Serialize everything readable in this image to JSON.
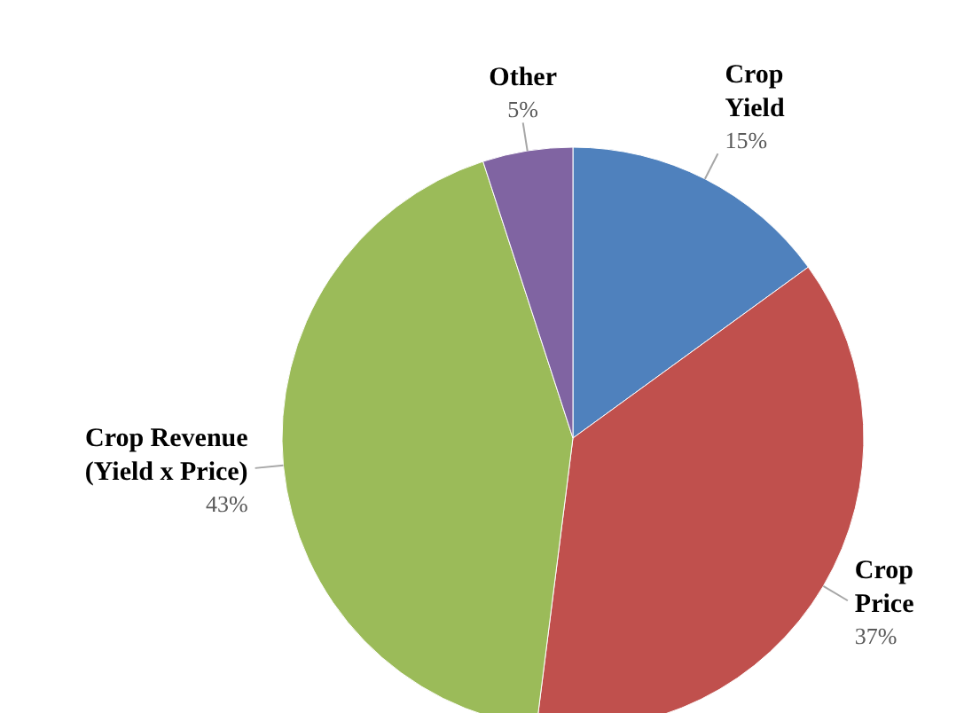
{
  "chart_data": {
    "type": "pie",
    "categories": [
      "Crop Yield",
      "Crop Price",
      "Crop Revenue (Yield x Price)",
      "Other"
    ],
    "values": [
      15,
      37,
      43,
      5
    ],
    "colors": [
      "#4f81bd",
      "#c0504d",
      "#9bbb59",
      "#8064a2"
    ],
    "value_labels": [
      "15%",
      "37%",
      "43%",
      "5%"
    ],
    "data_labels": true
  }
}
